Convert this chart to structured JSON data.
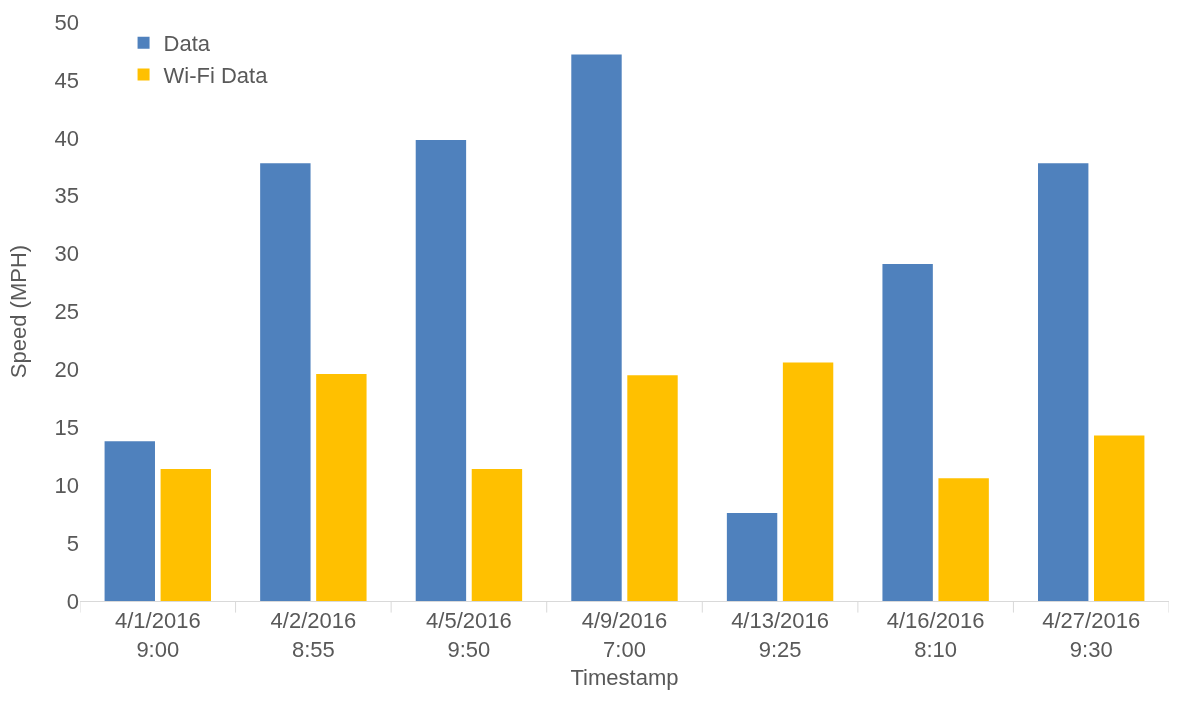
{
  "chart_data": {
    "type": "bar",
    "xlabel": "Timestamp",
    "ylabel": "Speed (MPH)",
    "categories": [
      "4/1/2016 9:00",
      "4/2/2016 8:55",
      "4/5/2016 9:50",
      "4/9/2016 7:00",
      "4/13/2016 9:25",
      "4/16/2016 8:10",
      "4/27/2016 9:30"
    ],
    "series": [
      {
        "name": "Data",
        "color": "#4f81bd",
        "values": [
          13.8,
          37.8,
          39.8,
          47.2,
          7.6,
          29.1,
          37.8
        ]
      },
      {
        "name": "Wi-Fi Data",
        "color": "#ffc000",
        "values": [
          11.4,
          19.6,
          11.4,
          19.5,
          20.6,
          10.6,
          14.3
        ]
      }
    ],
    "ylim": [
      0,
      50
    ],
    "yticks": [
      0,
      5,
      10,
      15,
      20,
      25,
      30,
      35,
      40,
      45,
      50
    ],
    "grid": false,
    "legend": "top left"
  }
}
